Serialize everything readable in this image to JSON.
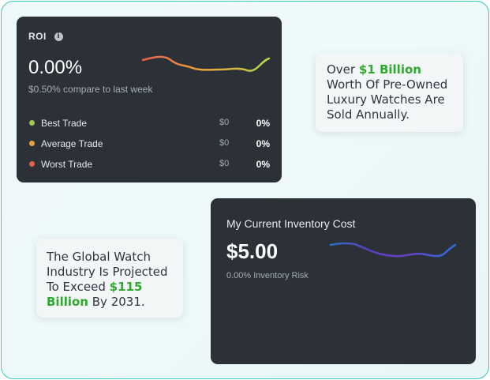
{
  "roi_card": {
    "title": "ROI",
    "value": "0.00%",
    "comparison": "$0.50% compare to last week",
    "trades": [
      {
        "label": "Best Trade",
        "amount": "$0",
        "percent": "0%",
        "color": "#a3c94a"
      },
      {
        "label": "Average Trade",
        "amount": "$0",
        "percent": "0%",
        "color": "#e9a13b"
      },
      {
        "label": "Worst Trade",
        "amount": "$0",
        "percent": "0%",
        "color": "#e5604a"
      }
    ]
  },
  "note_top": {
    "before": "Over ",
    "highlight": "$1 Billion",
    "after": " Worth Of Pre-Owned Luxury Watches Are Sold Annually."
  },
  "note_bottom": {
    "before": "The Global Watch Industry Is Projected To Exceed ",
    "highlight": "$115 Billion",
    "after": " By 2031."
  },
  "inventory_card": {
    "title": "My Current Inventory Cost",
    "value": "$5.00",
    "risk": "0.00% Inventory Risk"
  },
  "colors": {
    "accent_green": "#2fa82f",
    "card_bg": "#2c3138",
    "frame_border": "#39c9b4"
  }
}
